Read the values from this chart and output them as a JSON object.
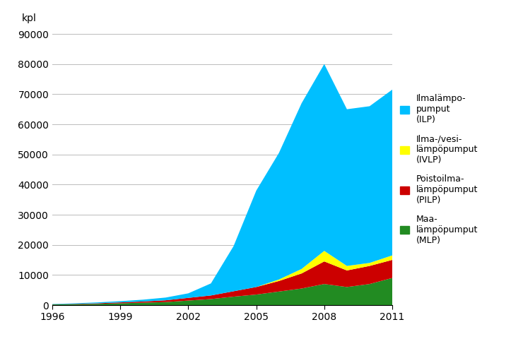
{
  "years": [
    1996,
    1997,
    1998,
    1999,
    2000,
    2001,
    2002,
    2003,
    2004,
    2005,
    2006,
    2007,
    2008,
    2009,
    2010,
    2011
  ],
  "MLP": [
    200,
    300,
    400,
    600,
    800,
    1000,
    1500,
    2000,
    2800,
    3500,
    4500,
    5500,
    7000,
    6000,
    7000,
    9000
  ],
  "PILP": [
    50,
    100,
    200,
    300,
    400,
    600,
    900,
    1200,
    1800,
    2500,
    3500,
    5000,
    7500,
    5500,
    6000,
    6000
  ],
  "IVLP": [
    0,
    0,
    0,
    0,
    0,
    0,
    0,
    0,
    0,
    0,
    500,
    1500,
    3500,
    1500,
    1000,
    1500
  ],
  "ILP": [
    100,
    200,
    300,
    400,
    600,
    900,
    1500,
    4000,
    15000,
    32000,
    42000,
    55000,
    62000,
    52000,
    52000,
    55000
  ],
  "colors": {
    "ILP": "#00BFFF",
    "IVLP": "#FFFF00",
    "PILP": "#CC0000",
    "MLP": "#228B22"
  },
  "ylim": [
    0,
    90000
  ],
  "yticks": [
    0,
    10000,
    20000,
    30000,
    40000,
    50000,
    60000,
    70000,
    80000,
    90000
  ],
  "ytick_labels": [
    "0",
    "10000",
    "20000",
    "30000",
    "40000",
    "50000",
    "60000",
    "70000",
    "80000",
    "90000"
  ],
  "ylabel": "kpl",
  "xticks": [
    1996,
    1999,
    2002,
    2005,
    2008,
    2011
  ],
  "legend_labels": {
    "ILP": "Ilmalämpo-\npumput\n(ILP)",
    "IVLP": "Ilma-/vesi-\nlämpöpumput\n(IVLP)",
    "PILP": "Poistoilma-\nlämpöpumput\n(PILP)",
    "MLP": "Maa-\nlämpöpumput\n(MLP)"
  },
  "background_color": "#FFFFFF",
  "grid_color": "#BBBBBB"
}
